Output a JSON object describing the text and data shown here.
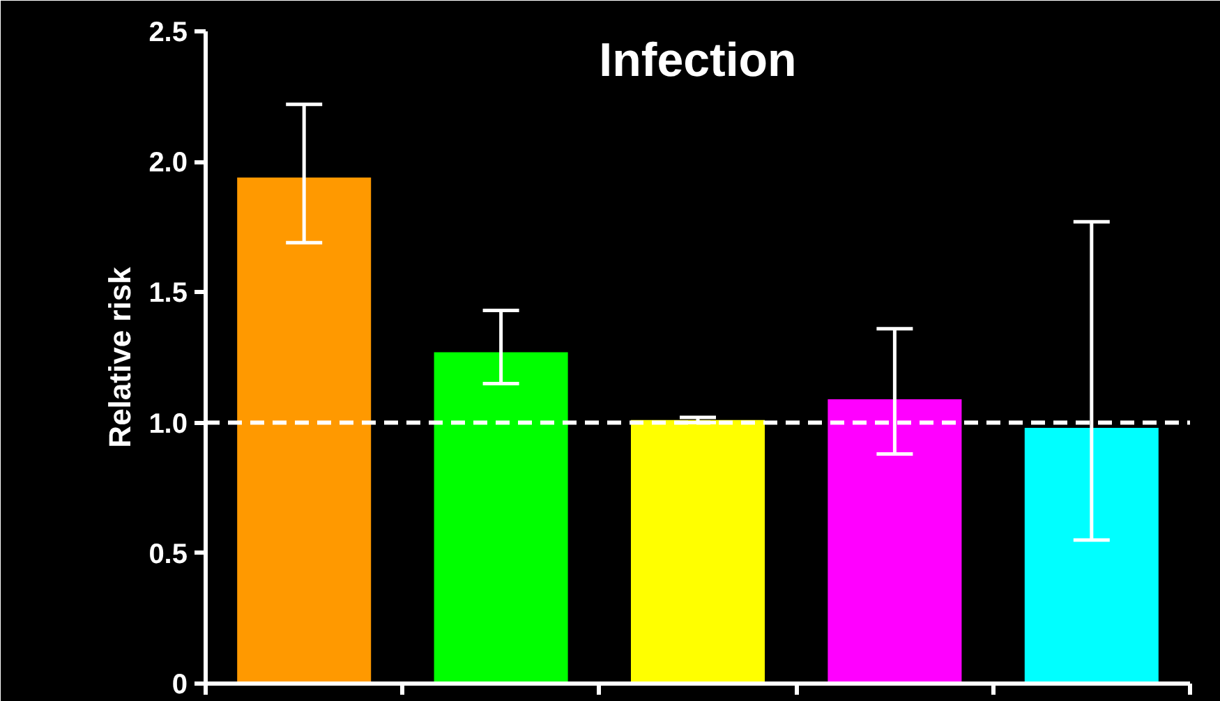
{
  "chart_data": {
    "type": "bar",
    "title": "Infection",
    "ylabel": "Relative risk",
    "categories": [
      null,
      null,
      null,
      null,
      null
    ],
    "values": [
      1.94,
      1.27,
      1.01,
      1.09,
      0.98
    ],
    "colors": [
      "#ff9900",
      "#00ff00",
      "#ffff00",
      "#ff00ff",
      "#00ffff"
    ],
    "errors": [
      [
        1.69,
        2.22
      ],
      [
        1.15,
        1.43
      ],
      [
        1.0,
        1.02
      ],
      [
        0.88,
        1.36
      ],
      [
        0.55,
        1.77
      ]
    ],
    "ylim": [
      0,
      2.5
    ],
    "yticks": [
      0,
      {
        "value": 0.5,
        "label": "0.5"
      },
      {
        "value": 1.0,
        "label": "1.0"
      },
      {
        "value": 1.5,
        "label": "1.5"
      },
      {
        "value": 2.0,
        "label": "2.0"
      },
      {
        "value": 2.5,
        "label": "2.5"
      }
    ],
    "ref_lines": [
      {
        "axis": "y",
        "value": 1.0,
        "color": "#ffffff",
        "line_style": "dashed"
      }
    ],
    "grid": false
  }
}
